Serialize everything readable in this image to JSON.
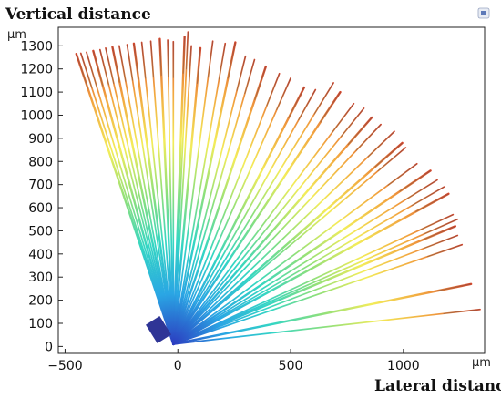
{
  "chart_data": {
    "type": "line",
    "title": "Vertical distance",
    "xlabel": "Lateral distance",
    "ylabel_unit": "µm",
    "xlabel_unit": "µm",
    "xlim": [
      -530,
      1360
    ],
    "ylim": [
      -30,
      1380
    ],
    "x_ticks": [
      -500,
      0,
      500,
      1000
    ],
    "y_ticks": [
      0,
      100,
      200,
      300,
      400,
      500,
      600,
      700,
      800,
      900,
      1000,
      1100,
      1200,
      1300
    ],
    "grid": false,
    "origin": [
      -20,
      10
    ],
    "color_map": [
      "#2b3cc0",
      "#2aa6e4",
      "#34d6c4",
      "#8fe07a",
      "#f3ec5a",
      "#f2a640",
      "#d9472c"
    ],
    "rays": [
      {
        "x": -450,
        "y": 1265
      },
      {
        "x": -430,
        "y": 1268
      },
      {
        "x": -405,
        "y": 1272
      },
      {
        "x": -375,
        "y": 1278
      },
      {
        "x": -345,
        "y": 1283
      },
      {
        "x": -320,
        "y": 1290
      },
      {
        "x": -290,
        "y": 1295
      },
      {
        "x": -260,
        "y": 1300
      },
      {
        "x": -225,
        "y": 1305
      },
      {
        "x": -195,
        "y": 1310
      },
      {
        "x": -160,
        "y": 1315
      },
      {
        "x": -120,
        "y": 1320
      },
      {
        "x": -80,
        "y": 1330
      },
      {
        "x": -45,
        "y": 1325
      },
      {
        "x": -20,
        "y": 1318
      },
      {
        "x": 30,
        "y": 1340
      },
      {
        "x": 45,
        "y": 1360
      },
      {
        "x": 60,
        "y": 1300
      },
      {
        "x": 100,
        "y": 1290
      },
      {
        "x": 155,
        "y": 1320
      },
      {
        "x": 210,
        "y": 1310
      },
      {
        "x": 255,
        "y": 1315
      },
      {
        "x": 300,
        "y": 1255
      },
      {
        "x": 340,
        "y": 1240
      },
      {
        "x": 390,
        "y": 1210
      },
      {
        "x": 450,
        "y": 1180
      },
      {
        "x": 500,
        "y": 1160
      },
      {
        "x": 560,
        "y": 1120
      },
      {
        "x": 610,
        "y": 1110
      },
      {
        "x": 690,
        "y": 1140
      },
      {
        "x": 720,
        "y": 1100
      },
      {
        "x": 780,
        "y": 1050
      },
      {
        "x": 825,
        "y": 1030
      },
      {
        "x": 860,
        "y": 990
      },
      {
        "x": 900,
        "y": 960
      },
      {
        "x": 960,
        "y": 930
      },
      {
        "x": 995,
        "y": 880
      },
      {
        "x": 1010,
        "y": 860
      },
      {
        "x": 1060,
        "y": 790
      },
      {
        "x": 1120,
        "y": 760
      },
      {
        "x": 1150,
        "y": 720
      },
      {
        "x": 1180,
        "y": 690
      },
      {
        "x": 1200,
        "y": 660
      },
      {
        "x": 1220,
        "y": 570
      },
      {
        "x": 1240,
        "y": 550
      },
      {
        "x": 1230,
        "y": 520
      },
      {
        "x": 1240,
        "y": 480
      },
      {
        "x": 1260,
        "y": 440
      },
      {
        "x": 1300,
        "y": 270
      },
      {
        "x": 1340,
        "y": 160
      }
    ]
  }
}
